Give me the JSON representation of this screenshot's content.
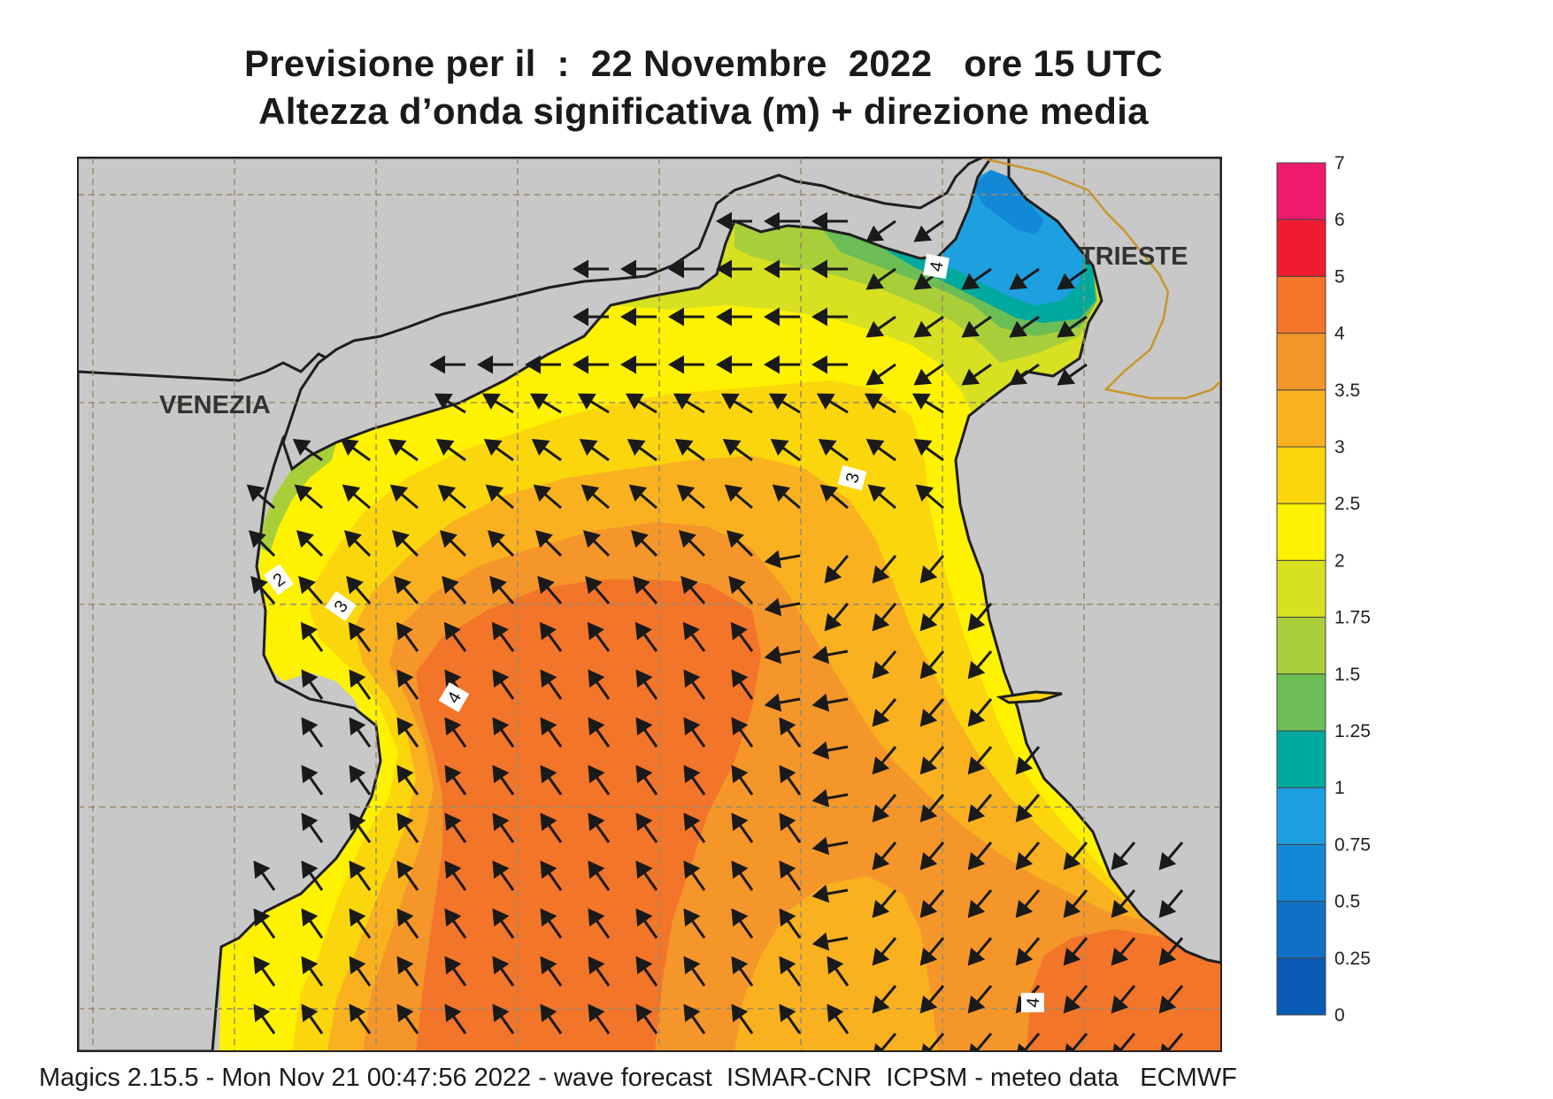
{
  "header": {
    "title_line1": "Previsione per il  :  22 Novembre  2022   ore 15 UTC",
    "title_line2": "Altezza d’onda significativa (m) + direzione media"
  },
  "map": {
    "cities": [
      {
        "name": "VENEZIA"
      },
      {
        "name": "TRIESTE"
      }
    ],
    "contour_labels": [
      "2",
      "3",
      "4",
      "3",
      "4",
      "4"
    ],
    "arrow_direction": "toward south-west in the west and centre, toward north-west in the east",
    "colors": {
      "land": "#c8c8c8",
      "coast": "#1e1e1e",
      "border": "#c9962c",
      "grid": "#9a8a6a",
      "arrow": "#1a1a1a"
    }
  },
  "legend": {
    "title": "",
    "levels": [
      {
        "label": "7",
        "color": "#ee1a6e"
      },
      {
        "label": "6",
        "color": "#ee1c2e"
      },
      {
        "label": "5",
        "color": "#f2752a"
      },
      {
        "label": "4",
        "color": "#f5962a"
      },
      {
        "label": "3.5",
        "color": "#f9b120"
      },
      {
        "label": "3",
        "color": "#fbd60c"
      },
      {
        "label": "2.5",
        "color": "#fff200"
      },
      {
        "label": "2",
        "color": "#d7e021"
      },
      {
        "label": "1.75",
        "color": "#a8cf3a"
      },
      {
        "label": "1.5",
        "color": "#6bbd55"
      },
      {
        "label": "1.25",
        "color": "#00a99d"
      },
      {
        "label": "1",
        "color": "#1e9fe0"
      },
      {
        "label": "0.75",
        "color": "#1388d6"
      },
      {
        "label": "0.5",
        "color": "#0f70c6"
      },
      {
        "label": "0.25",
        "color": "#0a5bb5"
      },
      {
        "label": "0",
        "color": ""
      }
    ]
  },
  "footer": {
    "text": "Magics 2.15.5 - Mon Nov 21 00:47:56 2022 - wave forecast  ISMAR-CNR  ICPSM - meteo data   ECMWF"
  }
}
